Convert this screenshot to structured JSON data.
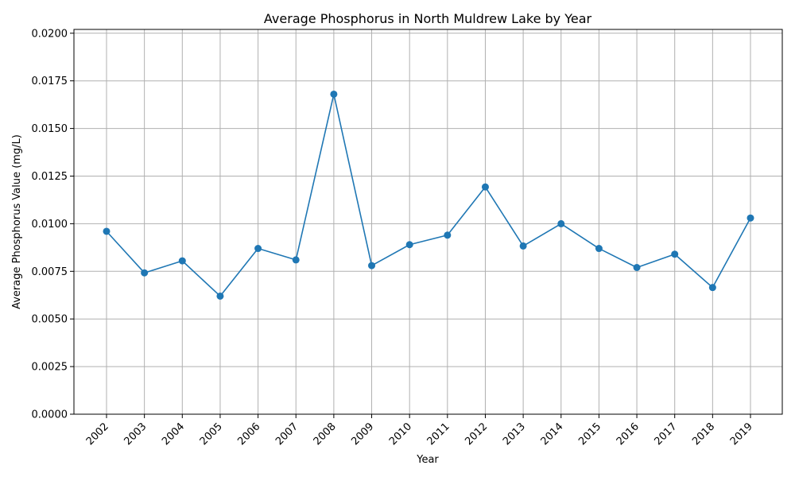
{
  "chart_data": {
    "type": "line",
    "title": "Average Phosphorus in North Muldrew Lake by Year",
    "xlabel": "Year",
    "ylabel": "Average Phosphorus Value (mg/L)",
    "categories": [
      "2002",
      "2003",
      "2004",
      "2005",
      "2006",
      "2007",
      "2008",
      "2009",
      "2010",
      "2011",
      "2012",
      "2013",
      "2014",
      "2015",
      "2016",
      "2017",
      "2018",
      "2019"
    ],
    "series": [
      {
        "values": [
          0.0096,
          0.00742,
          0.00805,
          0.0062,
          0.0087,
          0.0081,
          0.0168,
          0.0078,
          0.0089,
          0.0094,
          0.01193,
          0.00883,
          0.01,
          0.0087,
          0.0077,
          0.0084,
          0.00665,
          0.0103
        ],
        "color": "#1f77b4",
        "marker": "circle"
      }
    ],
    "ylim": [
      0,
      0.0202
    ],
    "yticks": [
      "0.0000",
      "0.0025",
      "0.0050",
      "0.0075",
      "0.0100",
      "0.0125",
      "0.0150",
      "0.0175",
      "0.0200"
    ],
    "grid": true,
    "legend": "none"
  }
}
